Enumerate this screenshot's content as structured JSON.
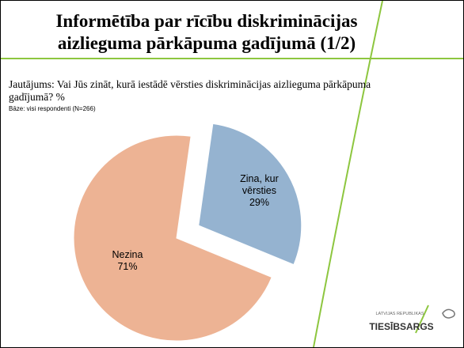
{
  "title": "Informētība par rīcību diskriminācijas aizlieguma pārkāpuma gadījumā (1/2)",
  "question": "Jautājums: Vai Jūs zināt, kurā iestādē vērsties diskriminācijas aizlieguma pārkāpuma gadījumā? %",
  "base": "Bāze: visi respondenti (N=266)",
  "chart_data": {
    "type": "pie",
    "categories": [
      "Zina, kur vērsties",
      "Nezina"
    ],
    "values": [
      29,
      71
    ],
    "value_labels": [
      "29%",
      "71%"
    ],
    "colors": [
      "#95b3d0",
      "#edb394"
    ]
  },
  "logo": {
    "top": "LATVIJAS REPUBLIKAS",
    "name": "TIESĪBSARGS"
  }
}
